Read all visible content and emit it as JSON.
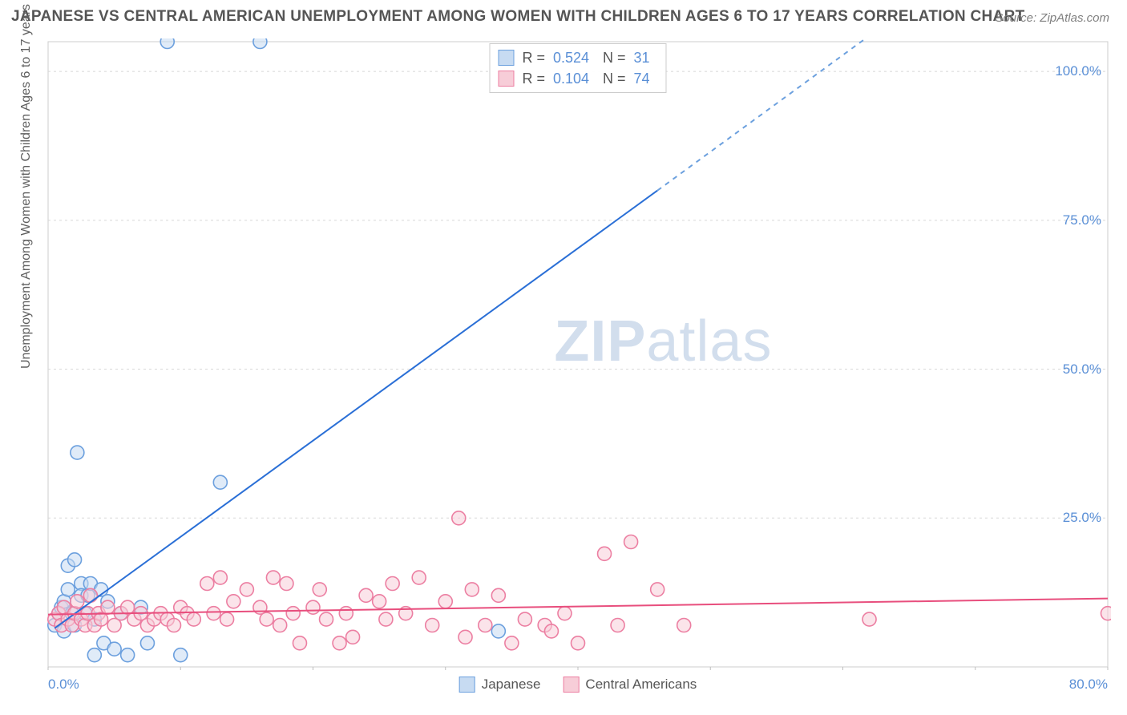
{
  "title": "JAPANESE VS CENTRAL AMERICAN UNEMPLOYMENT AMONG WOMEN WITH CHILDREN AGES 6 TO 17 YEARS CORRELATION CHART",
  "source_label": "Source: ZipAtlas.com",
  "ylabel": "Unemployment Among Women with Children Ages 6 to 17 years",
  "watermark_a": "ZIP",
  "watermark_b": "atlas",
  "chart": {
    "type": "scatter",
    "background_color": "#ffffff",
    "grid_color": "#d8d8d8",
    "grid_dash": "3,4",
    "axis_color": "#cccccc",
    "tick_color": "#bfbfbf",
    "xlim": [
      0,
      80
    ],
    "ylim": [
      0,
      105
    ],
    "xticks": [
      0,
      10,
      20,
      30,
      40,
      50,
      60,
      70,
      80
    ],
    "xtick_labels": [
      "0.0%",
      "",
      "",
      "",
      "",
      "",
      "",
      "",
      "80.0%"
    ],
    "yticks": [
      25,
      50,
      75,
      100
    ],
    "ytick_labels": [
      "25.0%",
      "50.0%",
      "75.0%",
      "100.0%"
    ],
    "marker_radius": 8.5,
    "marker_stroke_width": 1.6,
    "line_width": 2,
    "series": [
      {
        "name": "Japanese",
        "fill": "#c7dbf2",
        "stroke": "#6ca0de",
        "line_color": "#2a6fd6",
        "dash_color": "#6ca0de",
        "R": "0.524",
        "N": "31",
        "regression": {
          "x1": 0.5,
          "y1": 6.5,
          "x2": 46,
          "y2": 80,
          "x2_dash": 62,
          "y2_dash": 106
        },
        "points": [
          [
            0.5,
            7
          ],
          [
            0.8,
            9
          ],
          [
            1,
            10
          ],
          [
            1.2,
            11
          ],
          [
            1.2,
            6
          ],
          [
            1.5,
            17
          ],
          [
            1.5,
            13
          ],
          [
            1.8,
            9
          ],
          [
            2,
            18
          ],
          [
            2,
            7
          ],
          [
            2.2,
            36
          ],
          [
            2.5,
            14
          ],
          [
            2.5,
            12
          ],
          [
            2.8,
            9
          ],
          [
            3,
            12
          ],
          [
            3.2,
            14
          ],
          [
            3.5,
            8
          ],
          [
            3.5,
            2
          ],
          [
            4,
            13
          ],
          [
            4.2,
            4
          ],
          [
            4.5,
            11
          ],
          [
            5,
            3
          ],
          [
            5.5,
            9
          ],
          [
            6,
            2
          ],
          [
            7,
            10
          ],
          [
            7.5,
            4
          ],
          [
            9,
            105
          ],
          [
            10,
            2
          ],
          [
            13,
            31
          ],
          [
            16,
            105
          ],
          [
            34,
            6
          ]
        ]
      },
      {
        "name": "Central Americans",
        "fill": "#f7cdd8",
        "stroke": "#ec7fa2",
        "line_color": "#e84e7d",
        "R": "0.104",
        "N": "74",
        "regression": {
          "x1": 0,
          "y1": 8.8,
          "x2": 80,
          "y2": 11.5
        },
        "points": [
          [
            0.5,
            8
          ],
          [
            0.8,
            9
          ],
          [
            1,
            7
          ],
          [
            1.2,
            10
          ],
          [
            1.5,
            8
          ],
          [
            1.8,
            7
          ],
          [
            2,
            9
          ],
          [
            2.2,
            11
          ],
          [
            2.5,
            8
          ],
          [
            2.8,
            7
          ],
          [
            3,
            9
          ],
          [
            3.2,
            12
          ],
          [
            3.5,
            7
          ],
          [
            3.8,
            9
          ],
          [
            4,
            8
          ],
          [
            4.5,
            10
          ],
          [
            5,
            7
          ],
          [
            5.5,
            9
          ],
          [
            6,
            10
          ],
          [
            6.5,
            8
          ],
          [
            7,
            9
          ],
          [
            7.5,
            7
          ],
          [
            8,
            8
          ],
          [
            8.5,
            9
          ],
          [
            9,
            8
          ],
          [
            9.5,
            7
          ],
          [
            10,
            10
          ],
          [
            10.5,
            9
          ],
          [
            11,
            8
          ],
          [
            12,
            14
          ],
          [
            12.5,
            9
          ],
          [
            13,
            15
          ],
          [
            13.5,
            8
          ],
          [
            14,
            11
          ],
          [
            15,
            13
          ],
          [
            16,
            10
          ],
          [
            16.5,
            8
          ],
          [
            17,
            15
          ],
          [
            17.5,
            7
          ],
          [
            18,
            14
          ],
          [
            18.5,
            9
          ],
          [
            19,
            4
          ],
          [
            20,
            10
          ],
          [
            20.5,
            13
          ],
          [
            21,
            8
          ],
          [
            22,
            4
          ],
          [
            22.5,
            9
          ],
          [
            23,
            5
          ],
          [
            24,
            12
          ],
          [
            25,
            11
          ],
          [
            25.5,
            8
          ],
          [
            26,
            14
          ],
          [
            27,
            9
          ],
          [
            28,
            15
          ],
          [
            29,
            7
          ],
          [
            30,
            11
          ],
          [
            31,
            25
          ],
          [
            31.5,
            5
          ],
          [
            32,
            13
          ],
          [
            33,
            7
          ],
          [
            34,
            12
          ],
          [
            35,
            4
          ],
          [
            36,
            8
          ],
          [
            37.5,
            7
          ],
          [
            38,
            6
          ],
          [
            39,
            9
          ],
          [
            40,
            4
          ],
          [
            42,
            19
          ],
          [
            43,
            7
          ],
          [
            44,
            21
          ],
          [
            46,
            13
          ],
          [
            48,
            7
          ],
          [
            62,
            8
          ],
          [
            80,
            9
          ]
        ]
      }
    ]
  },
  "legend_bottom": [
    {
      "label": "Japanese",
      "fill": "#c7dbf2",
      "stroke": "#6ca0de"
    },
    {
      "label": "Central Americans",
      "fill": "#f7cdd8",
      "stroke": "#ec7fa2"
    }
  ]
}
